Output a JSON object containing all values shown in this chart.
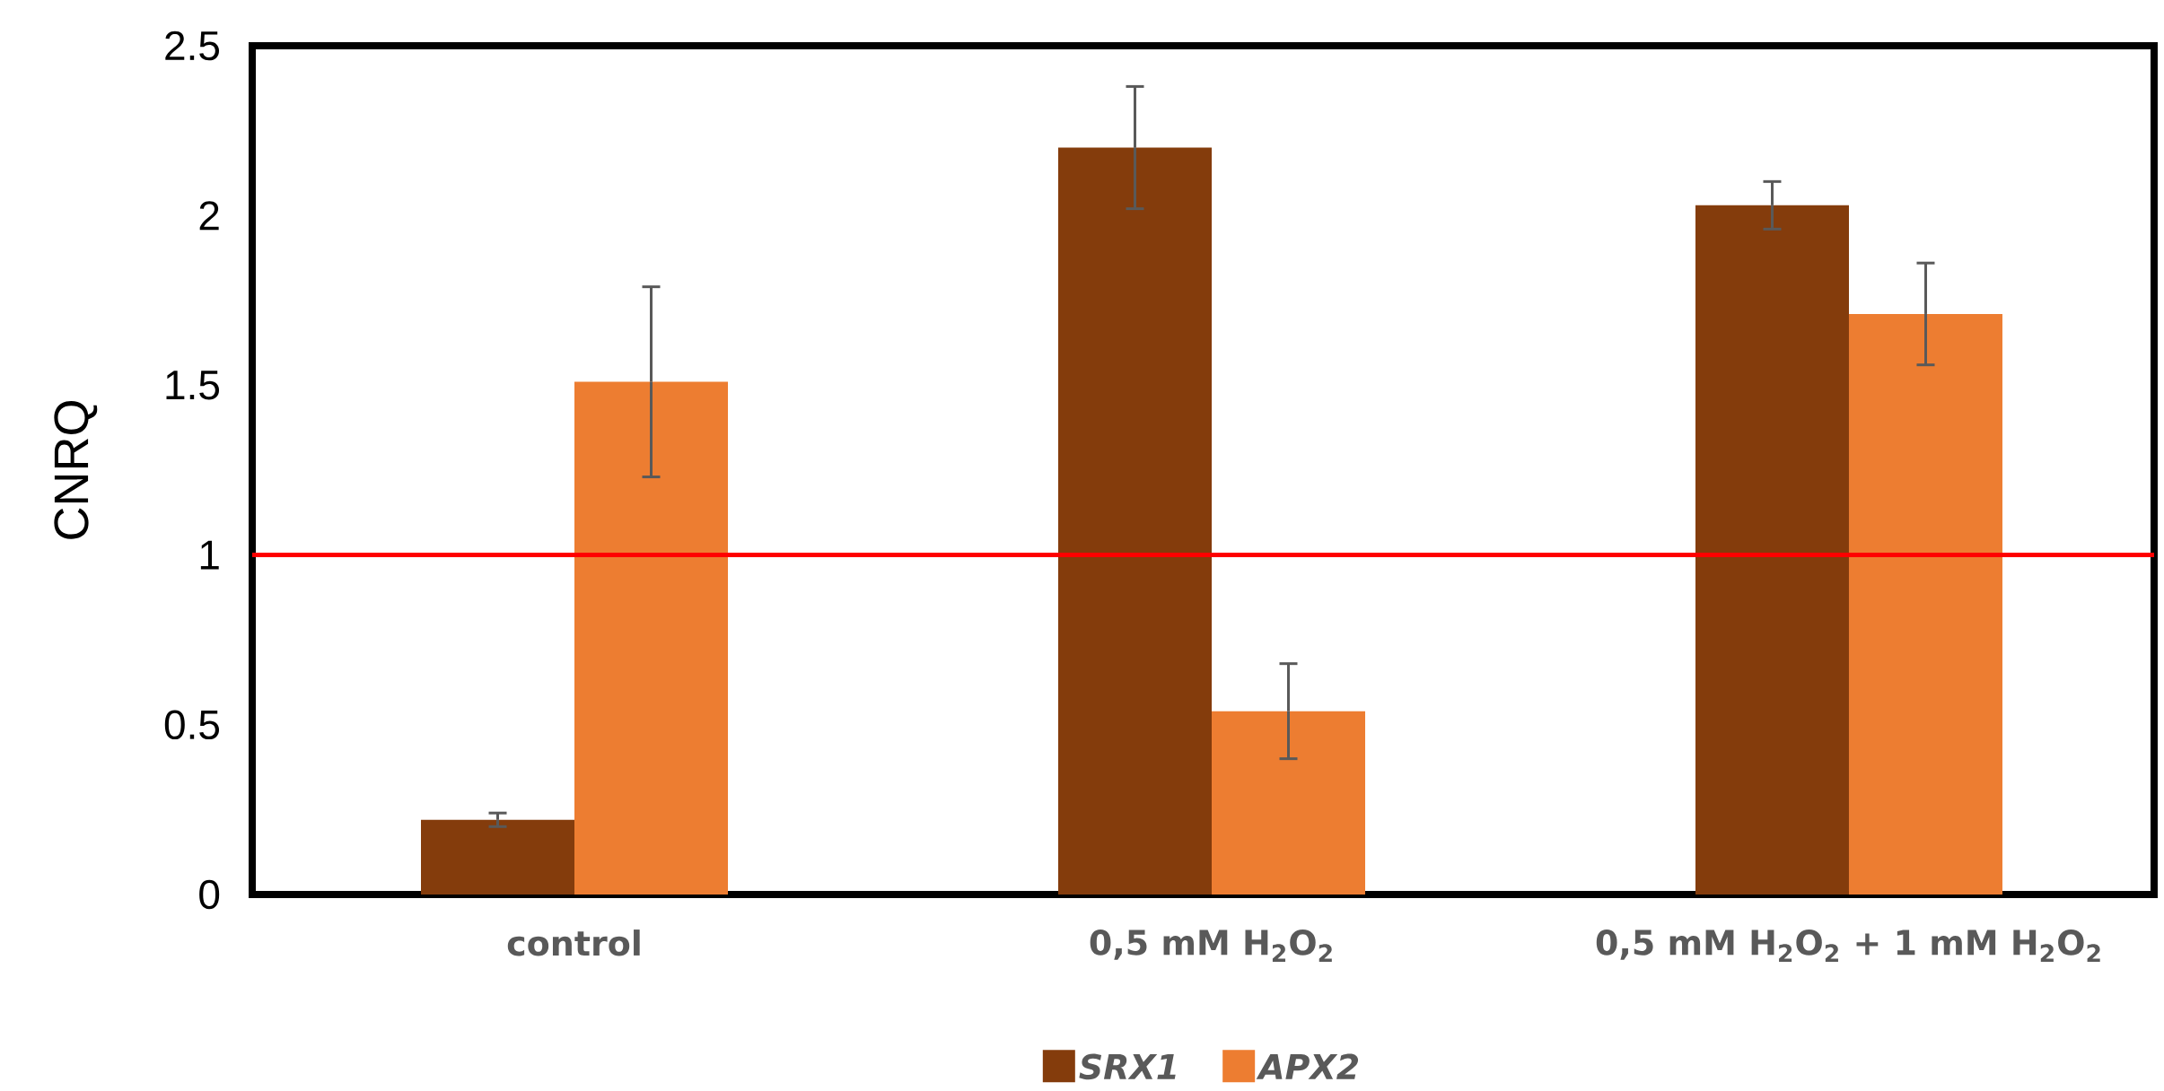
{
  "chart_data": {
    "type": "bar",
    "ylabel": "CNRQ",
    "categories": [
      "control",
      "0,5 mM H$_{2}$O$_{2}$",
      "0,5 mM H$_{2}$O$_{2}$ + 1 mM H$_{2}$O$_{2}$"
    ],
    "series": [
      {
        "name": "SRX1",
        "color": "#843c0c",
        "values": [
          0.22,
          2.2,
          2.03
        ],
        "errors": [
          0.02,
          0.18,
          0.07
        ]
      },
      {
        "name": "APX2",
        "color": "#ed7d31",
        "values": [
          1.51,
          0.54,
          1.71
        ],
        "errors": [
          0.28,
          0.14,
          0.15
        ]
      }
    ],
    "ylim": [
      0,
      2.5
    ],
    "yticks": [
      0,
      0.5,
      1,
      1.5,
      2,
      2.5
    ],
    "ref_lines": [
      {
        "axis": "y",
        "value": 1,
        "color": "#ff0000"
      }
    ],
    "legend": "bottom",
    "grid": false
  }
}
